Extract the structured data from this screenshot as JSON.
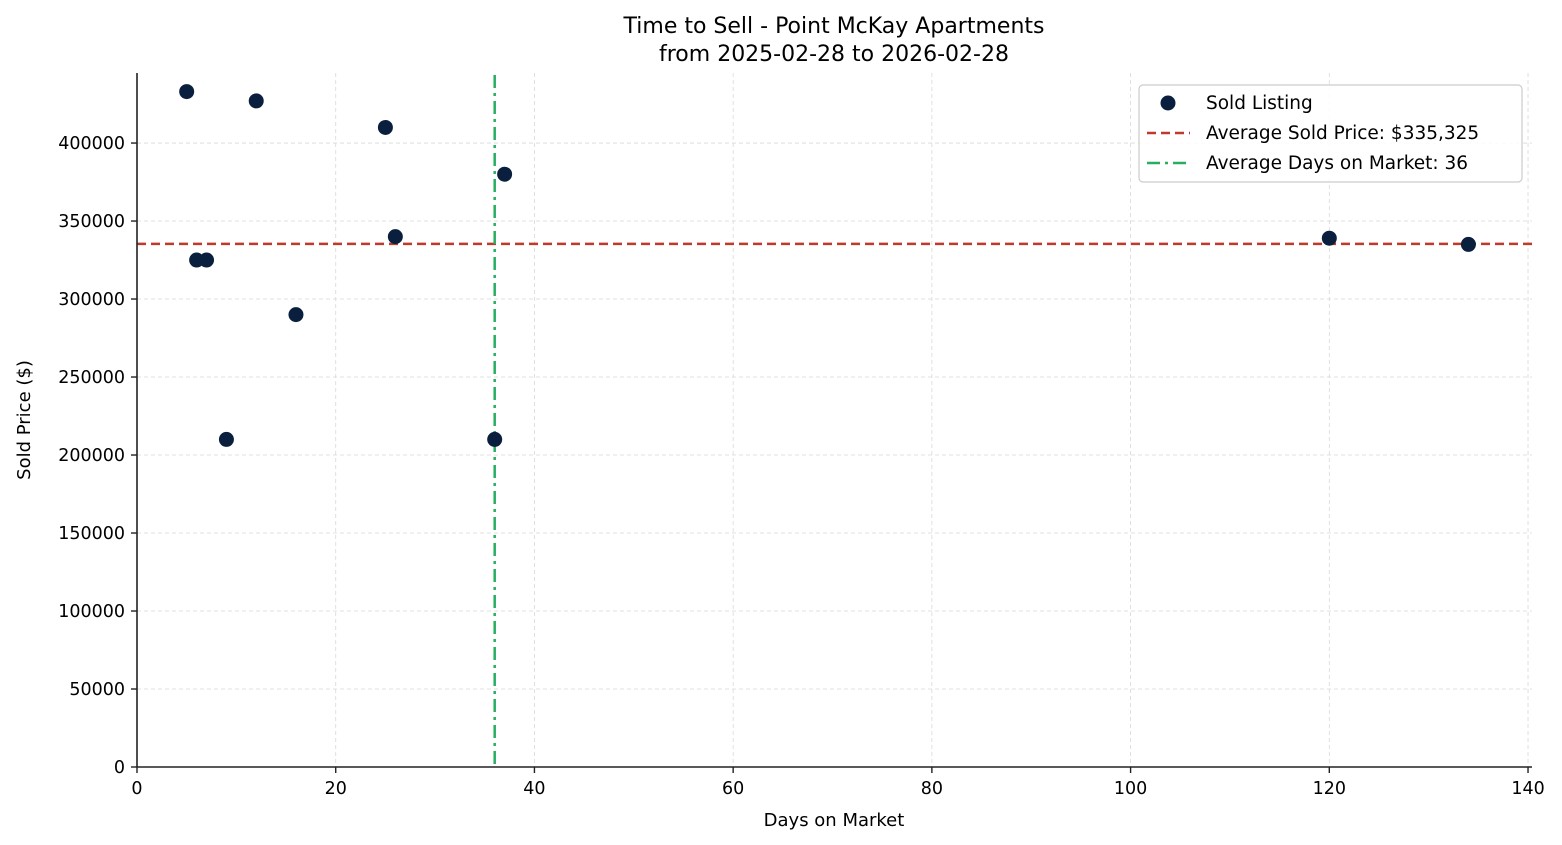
{
  "chart_data": {
    "type": "scatter",
    "title": "Time to Sell - Point McKay Apartments",
    "subtitle": "from 2025-02-28 to 2026-02-28",
    "xlabel": "Days on Market",
    "ylabel": "Sold Price ($)",
    "xlim": [
      0,
      140.4
    ],
    "ylim": [
      0,
      444900
    ],
    "xticks": [
      0,
      20,
      40,
      60,
      80,
      100,
      120,
      140
    ],
    "yticks": [
      0,
      50000,
      100000,
      150000,
      200000,
      250000,
      300000,
      350000,
      400000
    ],
    "grid": true,
    "legend_position": "upper right",
    "series": [
      {
        "name": "Sold Listing",
        "kind": "scatter",
        "color": "#0a1f3d",
        "points": [
          {
            "x": 5,
            "y": 433000
          },
          {
            "x": 12,
            "y": 427000
          },
          {
            "x": 25,
            "y": 410000
          },
          {
            "x": 37,
            "y": 380000
          },
          {
            "x": 26,
            "y": 340000
          },
          {
            "x": 6,
            "y": 325000
          },
          {
            "x": 7,
            "y": 325000
          },
          {
            "x": 16,
            "y": 290000
          },
          {
            "x": 9,
            "y": 210000
          },
          {
            "x": 36,
            "y": 210000
          },
          {
            "x": 120,
            "y": 339000
          },
          {
            "x": 134,
            "y": 335000
          }
        ]
      }
    ],
    "reference_lines": [
      {
        "name": "Average Sold Price: $335,325",
        "orientation": "horizontal",
        "value": 335325,
        "color": "#c0392b",
        "style": "dashed"
      },
      {
        "name": "Average Days on Market: 36",
        "orientation": "vertical",
        "value": 36,
        "color": "#27ae60",
        "style": "dashdot"
      }
    ]
  },
  "legend": {
    "items": [
      {
        "label": "Sold Listing"
      },
      {
        "label": "Average Sold Price: $335,325"
      },
      {
        "label": "Average Days on Market: 36"
      }
    ]
  }
}
